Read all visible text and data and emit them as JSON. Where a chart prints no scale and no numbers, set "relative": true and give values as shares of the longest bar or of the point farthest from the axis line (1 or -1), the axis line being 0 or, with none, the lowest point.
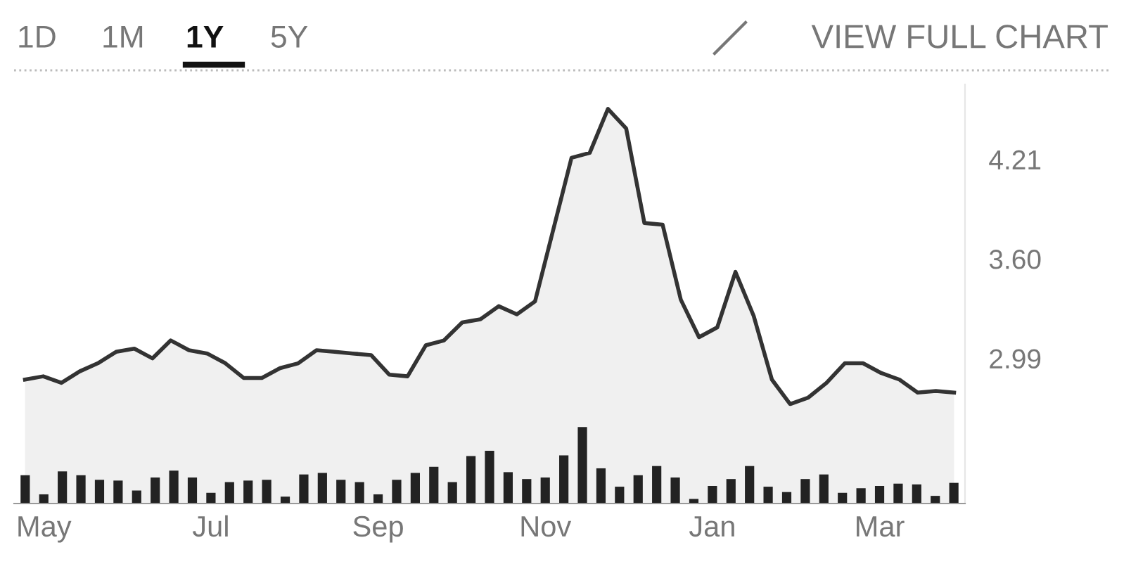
{
  "chart_data": [
    {
      "type": "area",
      "annotations": [
        "1D",
        "1M",
        "1Y",
        "5Y",
        "VIEW FULL CHART"
      ],
      "categories": [
        null,
        null,
        null,
        null,
        null,
        null,
        null,
        null,
        null,
        null,
        null,
        null,
        null,
        null,
        null,
        null,
        null,
        null,
        null,
        null,
        null,
        null,
        null,
        null,
        null,
        null,
        null,
        null,
        null,
        null,
        null,
        null,
        null,
        null,
        null,
        null,
        null,
        null,
        null,
        null,
        null,
        null,
        null,
        null,
        null,
        null,
        null,
        null,
        null,
        null,
        null,
        null
      ],
      "series": [
        {
          "color": "#333333",
          "values": [
            2.86,
            2.88,
            2.84,
            2.91,
            2.96,
            3.03,
            3.05,
            2.99,
            3.1,
            3.04,
            3.02,
            2.96,
            2.87,
            2.87,
            2.93,
            2.96,
            3.04,
            3.03,
            3.02,
            3.01,
            2.89,
            2.88,
            3.07,
            3.1,
            3.21,
            3.23,
            3.31,
            3.26,
            3.34,
            3.78,
            4.22,
            4.25,
            4.52,
            4.4,
            3.82,
            3.81,
            3.35,
            3.12,
            3.18,
            3.52,
            3.25,
            2.86,
            2.71,
            2.75,
            2.84,
            2.96,
            2.96,
            2.9,
            2.86,
            2.78,
            2.79,
            2.78
          ]
        }
      ],
      "ylim": [
        2.1,
        4.67
      ],
      "yticks": [
        2.99,
        {
          "value": 3.6,
          "label": "3.60"
        },
        4.21
      ],
      "tick_labels": "y",
      "grid": false
    },
    {
      "type": "bar",
      "relative": true,
      "tick_labels": "x",
      "categories": [
        null,
        "May",
        null,
        null,
        null,
        null,
        null,
        null,
        null,
        null,
        "Jul",
        null,
        null,
        null,
        null,
        null,
        null,
        null,
        null,
        "Sep",
        null,
        null,
        null,
        null,
        null,
        null,
        null,
        null,
        "Nov",
        null,
        null,
        null,
        null,
        null,
        null,
        null,
        null,
        "Jan",
        null,
        null,
        null,
        null,
        null,
        null,
        null,
        null,
        "Mar",
        null,
        null,
        null,
        null
      ],
      "series": [
        {
          "color": "#222222",
          "values": [
            0.37,
            0.12,
            0.42,
            0.37,
            0.31,
            0.3,
            0.17,
            0.34,
            0.43,
            0.34,
            0.14,
            0.28,
            0.3,
            0.31,
            0.09,
            0.38,
            0.4,
            0.31,
            0.28,
            0.12,
            0.31,
            0.4,
            0.48,
            0.28,
            0.62,
            0.69,
            0.41,
            0.32,
            0.34,
            0.63,
            1,
            0.46,
            0.22,
            0.37,
            0.49,
            0.34,
            0.06,
            0.23,
            0.32,
            0.49,
            0.22,
            0.15,
            0.32,
            0.38,
            0.14,
            0.2,
            0.23,
            0.26,
            0.25,
            0.1,
            0.27
          ]
        }
      ]
    }
  ]
}
